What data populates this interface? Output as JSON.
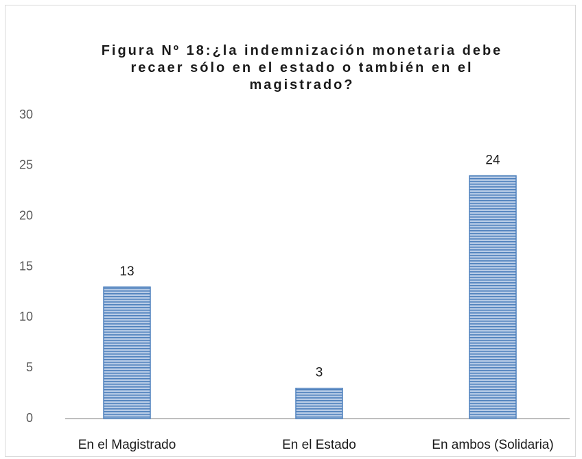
{
  "chart_data": {
    "type": "bar",
    "title": "Figura Nº 18:¿la indemnización monetaria debe recaer sólo en el estado o también en el magistrado?",
    "categories": [
      "En el Magistrado",
      "En el Estado",
      "En ambos (Solidaria)"
    ],
    "values": [
      13,
      3,
      24
    ],
    "color": "#4f81bd",
    "ylim": [
      0,
      30
    ],
    "yticks": [
      0,
      5,
      10,
      15,
      20,
      25,
      30
    ],
    "grid": false
  }
}
